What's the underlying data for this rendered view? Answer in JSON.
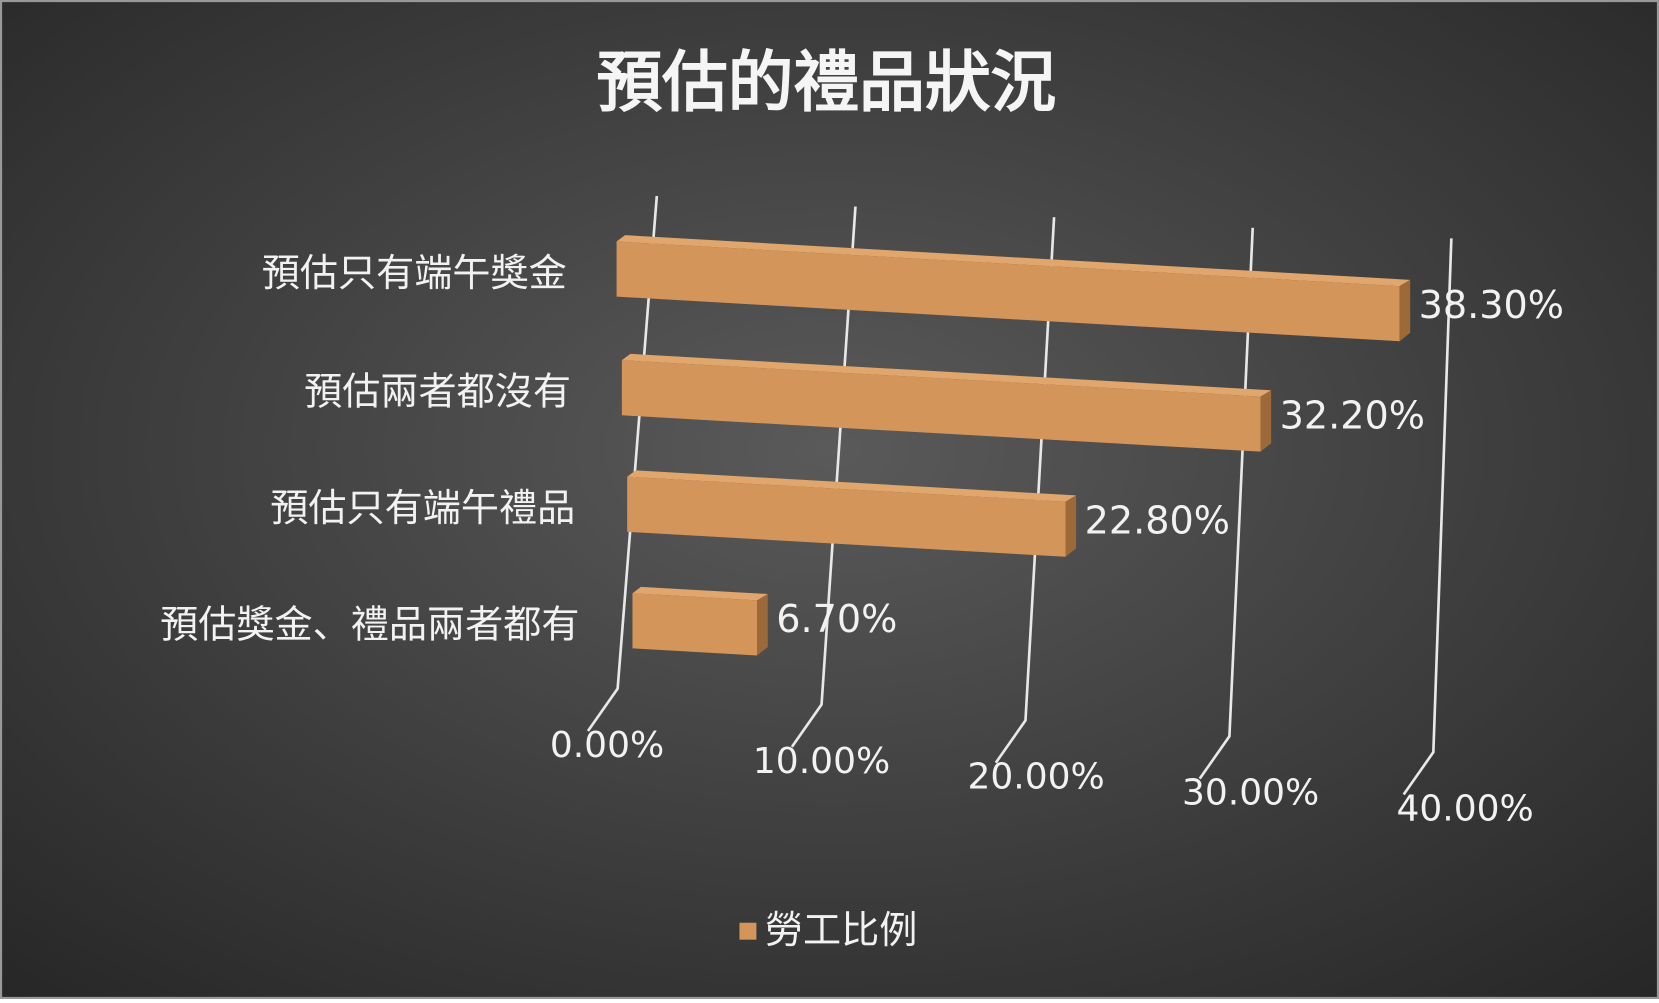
{
  "chart_data": {
    "type": "bar3d",
    "orientation": "horizontal",
    "title": "預估的禮品狀況",
    "categories": [
      "預估只有端午獎金",
      "預估兩者都沒有",
      "預估只有端午禮品",
      "預估獎金、禮品兩者都有"
    ],
    "series": [
      {
        "name": "勞工比例",
        "color": "#d4955a",
        "values": [
          38.3,
          32.2,
          22.8,
          6.7
        ],
        "value_labels": [
          "38.30%",
          "32.20%",
          "22.80%",
          "6.70%"
        ]
      }
    ],
    "xlim": [
      0,
      40
    ],
    "xticks": [
      {
        "value": 0,
        "label": "0.00%"
      },
      {
        "value": 10,
        "label": "10.00%"
      },
      {
        "value": 20,
        "label": "20.00%"
      },
      {
        "value": 30,
        "label": "30.00%"
      },
      {
        "value": 40,
        "label": "40.00%"
      }
    ],
    "grid": true,
    "legend": "bottom"
  }
}
